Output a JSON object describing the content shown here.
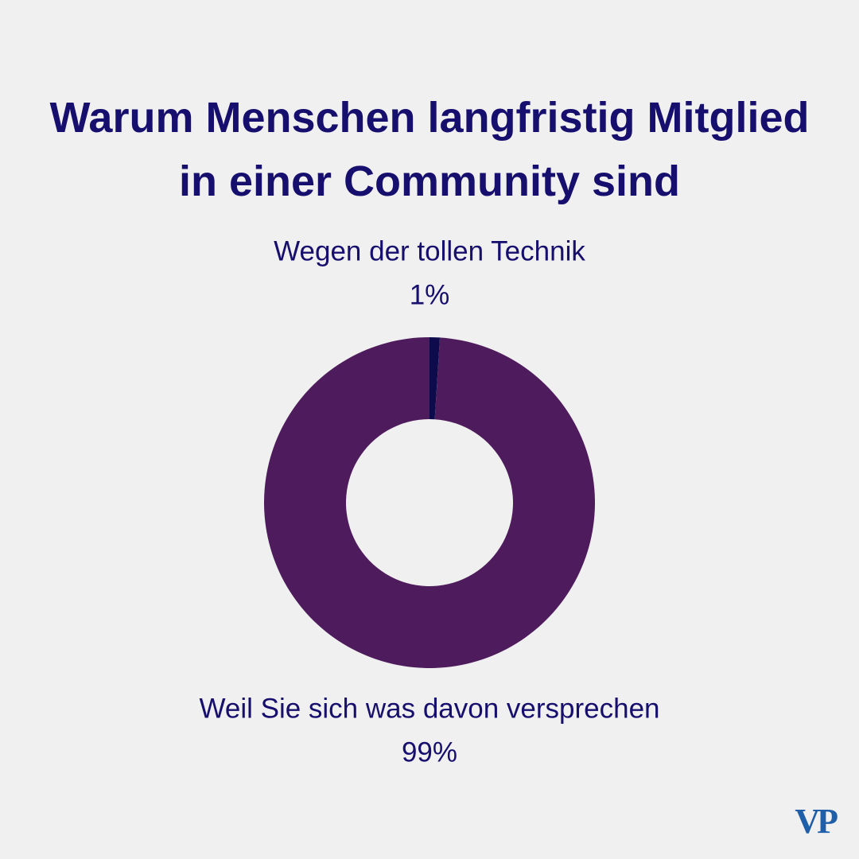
{
  "chart_data": {
    "type": "pie",
    "donut": true,
    "title": "Warum Menschen langfristig Mitglied in einer Community sind",
    "categories": [
      "Wegen der tollen Technik",
      "Weil Sie sich was davon versprechen"
    ],
    "values": [
      1,
      99
    ],
    "value_labels": [
      "1%",
      "99%"
    ],
    "colors": [
      "#0e0b4c",
      "#4e1c5c"
    ]
  },
  "logo": "VP"
}
